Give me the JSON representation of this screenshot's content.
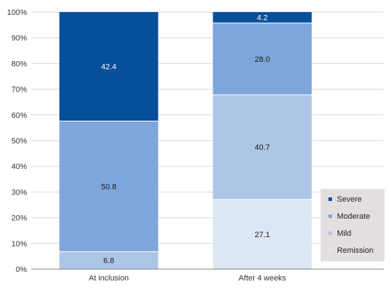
{
  "chart_data": {
    "type": "bar",
    "stacked": true,
    "percent_stacked": true,
    "categories": [
      "At inclusion",
      "After 4 weeks"
    ],
    "series": [
      {
        "name": "Remission",
        "values": [
          0,
          27.1
        ],
        "color": "#dde7f4"
      },
      {
        "name": "Mild",
        "values": [
          6.8,
          40.7
        ],
        "color": "#adc6e7"
      },
      {
        "name": "Moderate",
        "values": [
          50.8,
          28.0
        ],
        "color": "#7fa6da"
      },
      {
        "name": "Severe",
        "values": [
          42.4,
          4.2
        ],
        "color": "#084f9a"
      }
    ],
    "data_labels": [
      [
        "",
        "6.8",
        "50.8",
        "42.4"
      ],
      [
        "27.1",
        "40.7",
        "28.0",
        "4.2"
      ]
    ],
    "y_ticks": [
      "0%",
      "10%",
      "20%",
      "30%",
      "40%",
      "50%",
      "60%",
      "70%",
      "80%",
      "90%",
      "100%"
    ],
    "ylim": [
      0,
      100
    ],
    "grid": true,
    "legend_position": "bottom-right",
    "legend_order": [
      "Severe",
      "Moderate",
      "Mild",
      "Remission"
    ],
    "legend_background": "#e3dfdf",
    "title": "",
    "xlabel": "",
    "ylabel": ""
  }
}
